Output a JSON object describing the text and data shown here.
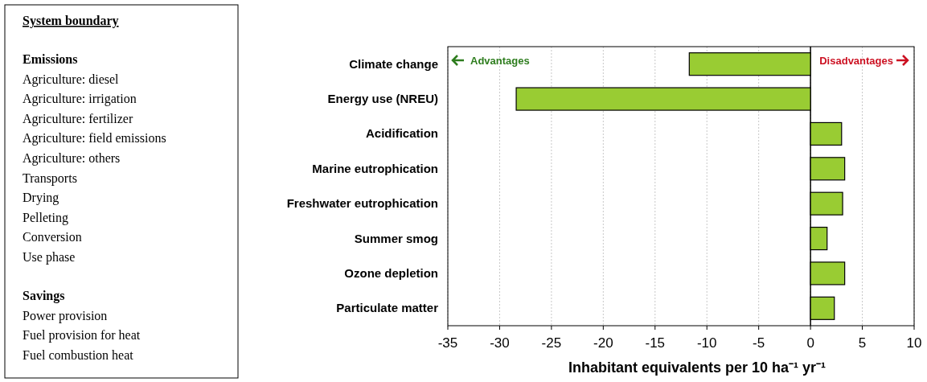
{
  "chart_data": [
    {
      "type": "other",
      "title": "System boundary"
    },
    {
      "type": "other",
      "title": "Emissions",
      "annotations": [
        "Agriculture: diesel",
        "Agriculture: irrigation",
        "Agriculture: fertilizer",
        "Agriculture: field emissions",
        "Agriculture: others",
        "Transports",
        "Drying",
        "Pelleting",
        "Conversion",
        "Use phase"
      ]
    },
    {
      "type": "other",
      "title": "Savings",
      "annotations": [
        "Power provision",
        "Fuel provision for heat",
        "Fuel combustion heat"
      ]
    },
    {
      "type": "bar",
      "orientation": "horizontal",
      "categories": [
        "Climate change",
        "Energy use (NREU)",
        "Acidification",
        "Marine eutrophication",
        "Freshwater eutrophication",
        "Summer smog",
        "Ozone depletion",
        "Particulate matter"
      ],
      "values": [
        -11.7,
        -28.4,
        3.0,
        3.3,
        3.1,
        1.6,
        3.3,
        2.3
      ],
      "color": "#99cc33",
      "xlim": [
        -35,
        10
      ],
      "xticks": [
        -35,
        -30,
        -25,
        -20,
        -15,
        -10,
        -5,
        0,
        5,
        10
      ],
      "grid": "x",
      "xlabel": "Inhabitant equivalents per 10 ha⁻¹ yr⁻¹",
      "ref_lines": [
        {
          "axis": "x",
          "value": 0,
          "color": "#000000"
        }
      ],
      "annotations": [
        "Advantages",
        "Disadvantages"
      ]
    }
  ]
}
